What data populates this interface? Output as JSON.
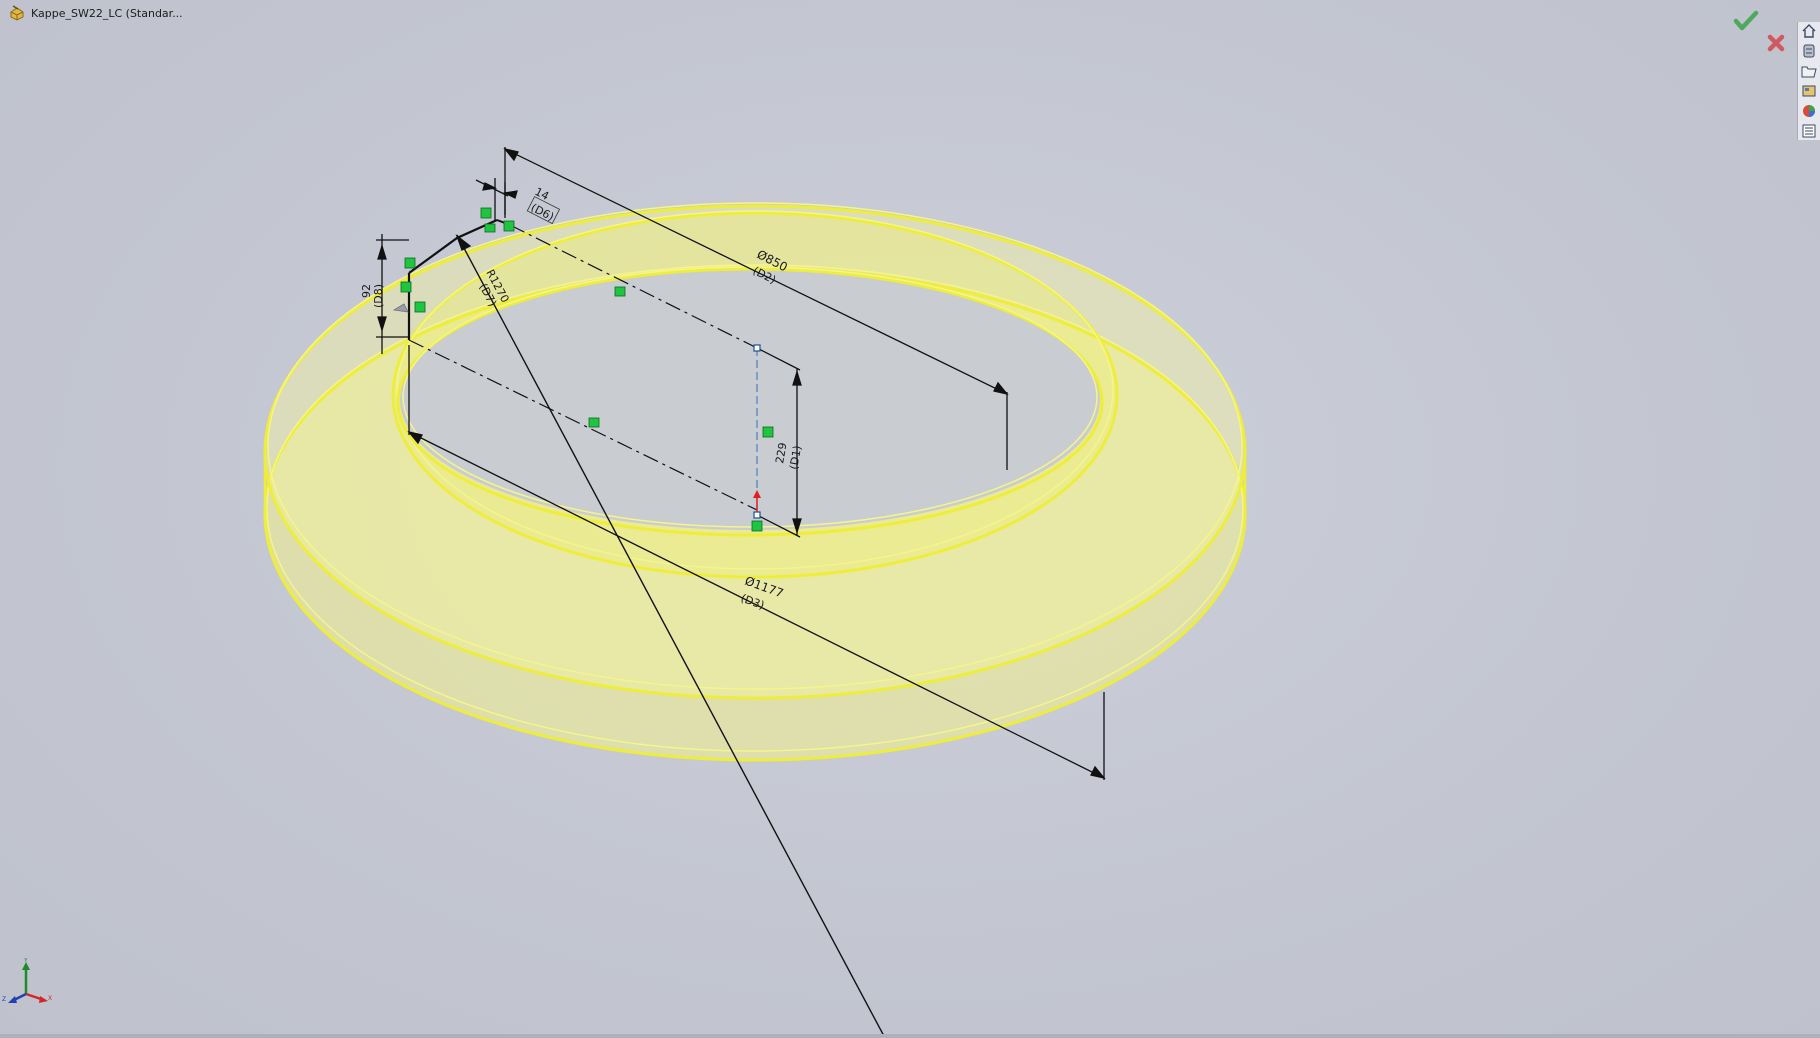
{
  "window": {
    "document_title": "Kappe_SW22_LC (Standar..."
  },
  "colors": {
    "background": "#c5c8d3",
    "part_fill": "#f2f28a",
    "part_edge": "#efef3a",
    "sketch_line": "#111111",
    "relation_marker": "#1fc441",
    "confirm_green": "#3aa54a",
    "cancel_red": "#d2474d"
  },
  "dimensions": [
    {
      "id": "d6",
      "value": "14",
      "name": "(D6)"
    },
    {
      "id": "d2",
      "value": "Ø850",
      "name": "(D2)"
    },
    {
      "id": "d7",
      "value": "R1270",
      "name": "(D7)"
    },
    {
      "id": "d8",
      "value": "92",
      "name": "(D8)"
    },
    {
      "id": "d1",
      "value": "229",
      "name": "(D1)"
    },
    {
      "id": "d3",
      "value": "Ø1177",
      "name": "(D3)"
    }
  ],
  "task_pane": {
    "buttons": [
      {
        "icon": "home-icon"
      },
      {
        "icon": "design-library-icon"
      },
      {
        "icon": "file-explorer-icon"
      },
      {
        "icon": "view-palette-icon"
      },
      {
        "icon": "appearances-icon"
      },
      {
        "icon": "custom-properties-icon"
      }
    ]
  },
  "confirmation_corner": {
    "ok_icon": "checkmark-icon",
    "cancel_icon": "close-icon"
  },
  "triad": {
    "x_label": "X",
    "y_label": "Y",
    "z_label": "Z"
  }
}
